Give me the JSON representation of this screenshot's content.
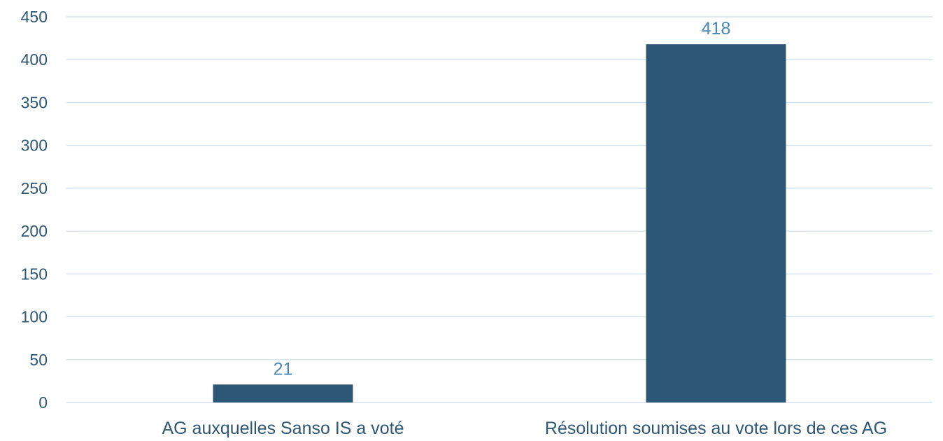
{
  "chart_data": {
    "type": "bar",
    "categories": [
      "AG auxquelles Sanso IS a voté",
      "Résolution soumises au vote lors de ces AG"
    ],
    "values": [
      21,
      418
    ],
    "data_labels": [
      "21",
      "418"
    ],
    "title": "",
    "xlabel": "",
    "ylabel": "",
    "ylim": [
      0,
      450
    ],
    "yticks": [
      0,
      50,
      100,
      150,
      200,
      250,
      300,
      350,
      400,
      450
    ],
    "ytick_labels": [
      "0",
      "50",
      "100",
      "150",
      "200",
      "250",
      "300",
      "350",
      "400",
      "450"
    ],
    "grid": true,
    "legend": "none"
  },
  "colors": {
    "bar": "#2e5775",
    "gridline": "#d6e2ee",
    "tick_text": "#2e5775",
    "category_text": "#2e5775",
    "data_label_text": "#4a87b8"
  }
}
